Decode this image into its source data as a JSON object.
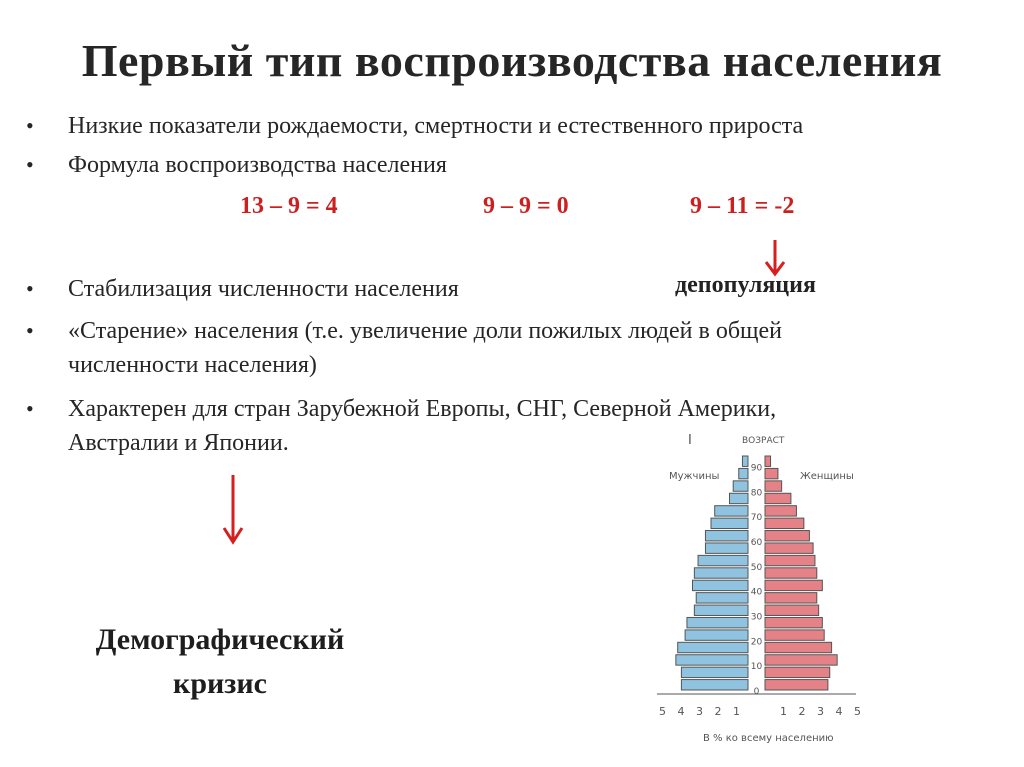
{
  "title": "Первый тип воспроизводства населения",
  "bullets": {
    "b1": "Низкие показатели рождаемости, смертности и естественного прироста",
    "b2": "Формула воспроизводства населения",
    "b3": "Стабилизация численности населения",
    "b4_line1": "«Старение» населения (т.е. увеличение доли пожилых людей в общей",
    "b4_line2": "численности населения)",
    "b5_line1": "Характерен для стран Зарубежной Европы, СНГ, Северной Америки,",
    "b5_line2": "Австралии и Японии."
  },
  "formulas": [
    "13 – 9 = 4",
    "9 – 9 = 0",
    "9 – 11 = -2"
  ],
  "depopulation": "депопуляция",
  "crisis_line1": "Демографический",
  "crisis_line2": "кризис",
  "colors": {
    "arrow": "#d42020",
    "men": "#8fc3e0",
    "women": "#e48288",
    "outline": "#555555"
  },
  "pyramid": {
    "roman": "I",
    "age_label": "ВОЗРАСТ",
    "men_label": "Мужчины",
    "women_label": "Женщины",
    "x_label": "В % ко всему населению",
    "age_ticks": [
      "90",
      "80",
      "70",
      "60",
      "50",
      "40",
      "30",
      "20",
      "10",
      "0"
    ],
    "pct_ticks": [
      "5",
      "4",
      "3",
      "2",
      "1",
      "1",
      "2",
      "3",
      "4",
      "5"
    ],
    "age_groups": [
      "0-4",
      "5-9",
      "10-14",
      "15-19",
      "20-24",
      "25-29",
      "30-34",
      "35-39",
      "40-44",
      "45-49",
      "50-54",
      "55-59",
      "60-64",
      "65-69",
      "70-74",
      "75-79",
      "80-84",
      "85-89",
      "90+"
    ],
    "men_pct": [
      3.6,
      3.6,
      3.9,
      3.8,
      3.4,
      3.3,
      2.9,
      2.8,
      3.0,
      2.9,
      2.7,
      2.3,
      2.3,
      2.0,
      1.8,
      1.0,
      0.8,
      0.5,
      0.3
    ],
    "women_pct": [
      3.4,
      3.5,
      3.9,
      3.6,
      3.2,
      3.1,
      2.9,
      2.8,
      3.1,
      2.8,
      2.7,
      2.6,
      2.4,
      2.1,
      1.7,
      1.4,
      0.9,
      0.7,
      0.3
    ]
  }
}
